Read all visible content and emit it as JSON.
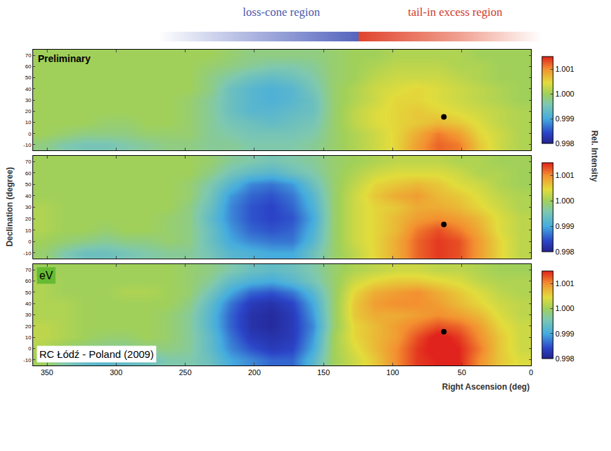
{
  "header": {
    "left": "loss-cone region",
    "right": "tail-in excess region"
  },
  "chart_data": [
    {
      "type": "heatmap",
      "annotation": "Preliminary",
      "tick_labels": "y",
      "grid": false,
      "xlim": [
        360,
        0
      ],
      "xticks": [
        350,
        300,
        250,
        200,
        150,
        100,
        50,
        0
      ],
      "ylim": [
        -15,
        75
      ],
      "yticks": [
        -10,
        0,
        10,
        20,
        30,
        40,
        50,
        60,
        70
      ],
      "zlim": [
        0.998,
        1.0015
      ],
      "zticks": [
        0.998,
        0.999,
        {
          "value": 1,
          "label": "1.000"
        },
        1.001
      ],
      "points": {
        "x": [
          63
        ],
        "y": [
          15
        ],
        "marker": "circle",
        "color": "#000000"
      },
      "x": [
        7.5,
        22.5,
        37.5,
        52.5,
        67.5,
        82.5,
        97.5,
        112.5,
        127.5,
        142.5,
        157.5,
        172.5,
        187.5,
        202.5,
        217.5,
        232.5,
        247.5,
        262.5,
        277.5,
        292.5,
        307.5,
        322.5,
        337.5,
        352.5
      ],
      "y": [
        -10,
        0,
        10,
        20,
        30,
        40,
        50,
        60,
        70
      ],
      "z": [
        [
          1.0001,
          1.0003,
          1.0006,
          1.0011,
          1.0012,
          1.0009,
          1.0005,
          1.0003,
          1.0001,
          0.9999,
          0.9997,
          0.9996,
          0.9996,
          0.9996,
          0.9997,
          0.9997,
          0.9998,
          0.9998,
          0.9997,
          0.9996,
          0.9995,
          0.9995,
          0.9996,
          0.9998
        ],
        [
          1.0001,
          1.0003,
          1.0005,
          1.0009,
          1.0011,
          1.0008,
          1.0005,
          1.0003,
          1.0001,
          0.9999,
          0.9996,
          0.9995,
          0.9995,
          0.9995,
          0.9996,
          0.9997,
          0.9999,
          0.9999,
          0.9999,
          0.9998,
          0.9998,
          0.9998,
          0.9999,
          1
        ],
        [
          1.0001,
          1.0002,
          1.0004,
          1.0006,
          1.0007,
          1.0006,
          1.0005,
          1.0004,
          1.0002,
          0.9999,
          0.9995,
          0.9994,
          0.9993,
          0.9994,
          0.9995,
          0.9997,
          0.9999,
          1,
          1,
          0.9999,
          0.9999,
          1,
          1,
          1
        ],
        [
          1.0001,
          1.0002,
          1.0003,
          1.0004,
          1.0005,
          1.0006,
          1.0005,
          1.0004,
          1.0002,
          0.9999,
          0.9994,
          0.9993,
          0.9992,
          0.9992,
          0.9994,
          0.9997,
          0.9999,
          1,
          1,
          1,
          1,
          1,
          1,
          1
        ],
        [
          1,
          1.0001,
          1.0002,
          1.0003,
          1.0004,
          1.0005,
          1.0005,
          1.0003,
          1.0001,
          0.9999,
          0.9994,
          0.9992,
          0.9991,
          0.9992,
          0.9994,
          0.9997,
          0.9999,
          1,
          1,
          1,
          1,
          1,
          1,
          1
        ],
        [
          1,
          1.0001,
          1.0002,
          1.0003,
          1.0004,
          1.0005,
          1.0004,
          1.0003,
          1.0001,
          0.9999,
          0.9995,
          0.9992,
          0.9991,
          0.9992,
          0.9994,
          0.9998,
          1,
          1,
          1,
          1,
          1,
          1,
          1,
          1
        ],
        [
          1,
          1,
          1.0001,
          1.0002,
          1.0003,
          1.0003,
          1.0003,
          1.0002,
          1,
          0.9999,
          0.9996,
          0.9994,
          0.9993,
          0.9994,
          0.9996,
          0.9998,
          1,
          1,
          1,
          1,
          1,
          1,
          1,
          1
        ],
        [
          1,
          1,
          1.0001,
          1.0001,
          1.0002,
          1.0002,
          1.0002,
          1.0001,
          1,
          0.9999,
          0.9997,
          0.9996,
          0.9996,
          0.9997,
          0.9998,
          0.9999,
          1,
          1,
          1,
          1,
          1,
          1,
          1,
          1
        ],
        [
          1,
          1,
          1,
          1.0001,
          1.0001,
          1.0001,
          1.0001,
          1,
          1,
          0.9999,
          0.9998,
          0.9998,
          0.9998,
          0.9998,
          0.9999,
          1,
          1,
          1,
          1,
          1,
          1,
          1,
          1,
          1
        ]
      ]
    },
    {
      "type": "heatmap",
      "ylabel": "Declination (degree)",
      "zlabel": "Rel. Intensity",
      "tick_labels": "y",
      "grid": false,
      "xlim": [
        360,
        0
      ],
      "xticks": [
        350,
        300,
        250,
        200,
        150,
        100,
        50,
        0
      ],
      "ylim": [
        -15,
        75
      ],
      "yticks": [
        -10,
        0,
        10,
        20,
        30,
        40,
        50,
        60,
        70
      ],
      "zlim": [
        0.998,
        1.0015
      ],
      "zticks": [
        0.998,
        0.999,
        {
          "value": 1,
          "label": "1.000"
        },
        1.001
      ],
      "points": {
        "x": [
          63
        ],
        "y": [
          15
        ],
        "marker": "circle",
        "color": "#000000"
      },
      "x": [
        7.5,
        22.5,
        37.5,
        52.5,
        67.5,
        82.5,
        97.5,
        112.5,
        127.5,
        142.5,
        157.5,
        172.5,
        187.5,
        202.5,
        217.5,
        232.5,
        247.5,
        262.5,
        277.5,
        292.5,
        307.5,
        322.5,
        337.5,
        352.5
      ],
      "y": [
        -10,
        0,
        10,
        20,
        30,
        40,
        50,
        60,
        70
      ],
      "z": [
        [
          1.0002,
          1.0005,
          1.0009,
          1.0013,
          1.0014,
          1.0012,
          1.0008,
          1.0005,
          1.0002,
          0.9999,
          0.9994,
          0.999,
          0.999,
          0.9991,
          0.9992,
          0.9995,
          0.9997,
          0.9997,
          0.9996,
          0.9995,
          0.9994,
          0.9994,
          0.9996,
          0.9999
        ],
        [
          1.0002,
          1.0005,
          1.0009,
          1.0013,
          1.0014,
          1.0012,
          1.0008,
          1.0005,
          1.0003,
          0.9999,
          0.9992,
          0.9987,
          0.9987,
          0.9988,
          0.999,
          0.9994,
          0.9998,
          0.9999,
          0.9998,
          0.9998,
          0.9997,
          0.9998,
          0.9999,
          1
        ],
        [
          1.0002,
          1.0004,
          1.0008,
          1.0011,
          1.0013,
          1.0011,
          1.0007,
          1.0005,
          1.0003,
          0.9999,
          0.9991,
          0.9986,
          0.9985,
          0.9986,
          0.9989,
          0.9994,
          0.9998,
          0.9999,
          1,
          1,
          0.9999,
          1,
          1,
          1.0001
        ],
        [
          1.0002,
          1.0004,
          1.0007,
          1.0009,
          1.001,
          1.0009,
          1.0007,
          1.0005,
          1.0003,
          0.9999,
          0.999,
          0.9985,
          0.9984,
          0.9985,
          0.9988,
          0.9993,
          0.9998,
          0.9999,
          1,
          1,
          1,
          1,
          1,
          1.0001
        ],
        [
          1.0001,
          1.0003,
          1.0005,
          1.0007,
          1.0008,
          1.0008,
          1.0006,
          1.0005,
          1.0003,
          0.9999,
          0.9991,
          0.9986,
          0.9984,
          0.9985,
          0.9988,
          0.9994,
          0.9998,
          1,
          1,
          1,
          1,
          1,
          1,
          1.0001
        ],
        [
          1.0001,
          1.0002,
          1.0004,
          1.0006,
          1.0007,
          1.0009,
          1.0008,
          1.0006,
          1.0003,
          0.9999,
          0.9992,
          0.9987,
          0.9985,
          0.9986,
          0.9989,
          0.9995,
          0.9999,
          1,
          1,
          1,
          1,
          1,
          1,
          1
        ],
        [
          1,
          1.0001,
          1.0003,
          1.0004,
          1.0006,
          1.0007,
          1.0006,
          1.0005,
          1.0002,
          0.9999,
          0.9994,
          0.9989,
          0.9987,
          0.9988,
          0.9992,
          0.9996,
          0.9999,
          1,
          1,
          1,
          1,
          1,
          1,
          1
        ],
        [
          1,
          1.0001,
          1.0001,
          1.0003,
          1.0004,
          1.0004,
          1.0004,
          1.0003,
          1.0001,
          0.9999,
          0.9996,
          0.9994,
          0.9992,
          0.9993,
          0.9995,
          0.9998,
          1,
          1,
          1,
          1,
          1,
          1,
          1,
          1
        ],
        [
          1,
          1,
          1.0001,
          1.0001,
          1.0002,
          1.0002,
          1.0002,
          1.0001,
          1,
          0.9999,
          0.9997,
          0.9996,
          0.9995,
          0.9996,
          0.9997,
          0.9999,
          1,
          1,
          1,
          1,
          1,
          1,
          1,
          1
        ]
      ]
    },
    {
      "type": "heatmap",
      "xlabel": "Right Ascension (deg)",
      "annotations": [
        "eV",
        "RC Łódź - Poland (2009)"
      ],
      "grid": false,
      "xlim": [
        360,
        0
      ],
      "xticks": [
        350,
        300,
        250,
        200,
        150,
        100,
        50,
        0
      ],
      "ylim": [
        -15,
        75
      ],
      "yticks": [
        -10,
        0,
        10,
        20,
        30,
        40,
        50,
        60,
        70
      ],
      "zlim": [
        0.998,
        1.0015
      ],
      "zticks": [
        0.998,
        0.999,
        {
          "value": 1,
          "label": "1.000"
        },
        1.001
      ],
      "points": {
        "x": [
          63
        ],
        "y": [
          15
        ],
        "marker": "circle",
        "color": "#000000"
      },
      "x": [
        7.5,
        22.5,
        37.5,
        52.5,
        67.5,
        82.5,
        97.5,
        112.5,
        127.5,
        142.5,
        157.5,
        172.5,
        187.5,
        202.5,
        217.5,
        232.5,
        247.5,
        262.5,
        277.5,
        292.5,
        307.5,
        322.5,
        337.5,
        352.5
      ],
      "y": [
        -10,
        0,
        10,
        20,
        30,
        40,
        50,
        60,
        70
      ],
      "z": [
        [
          1.0004,
          1.0006,
          1.001,
          1.0015,
          1.0015,
          1.0014,
          1.001,
          1.0006,
          1.0003,
          1,
          0.9992,
          0.9986,
          0.9986,
          0.9988,
          0.999,
          0.9994,
          0.9996,
          0.9996,
          0.9994,
          0.9993,
          0.9992,
          0.9993,
          0.9996,
          1
        ],
        [
          1.0003,
          1.0006,
          1.0011,
          1.0015,
          1.0016,
          1.0014,
          1.001,
          1.0007,
          1.0004,
          1,
          0.999,
          0.9984,
          0.9983,
          0.9985,
          0.9988,
          0.9993,
          0.9997,
          0.9998,
          0.9998,
          0.9997,
          0.9997,
          0.9998,
          0.9999,
          1.0001
        ],
        [
          1.0003,
          1.0006,
          1.001,
          1.0014,
          1.0016,
          1.0013,
          1.0009,
          1.0007,
          1.0005,
          1,
          0.9989,
          0.9983,
          0.9982,
          0.9983,
          0.9987,
          0.9993,
          0.9997,
          0.9999,
          1,
          0.9999,
          0.9999,
          1,
          1.0001,
          1.0002
        ],
        [
          1.0003,
          1.0005,
          1.0009,
          1.0012,
          1.0013,
          1.0011,
          1.0009,
          1.0007,
          1.0005,
          0.9999,
          0.9988,
          0.9983,
          0.9981,
          0.9982,
          0.9986,
          0.9992,
          0.9997,
          0.9999,
          1,
          1,
          1,
          1,
          1.0001,
          1.0002
        ],
        [
          1.0002,
          1.0004,
          1.0007,
          1.0009,
          1.001,
          1.0009,
          1.0008,
          1.0008,
          1.0006,
          0.9999,
          0.9989,
          0.9983,
          0.9981,
          0.9982,
          0.9986,
          0.9992,
          0.9997,
          0.9999,
          1,
          1,
          1,
          1,
          1.0001,
          1.0001
        ],
        [
          1.0002,
          1.0003,
          1.0005,
          1.0007,
          1.0009,
          1.001,
          1.001,
          1.0009,
          1.0006,
          0.9999,
          0.999,
          0.9984,
          0.9982,
          0.9983,
          0.9987,
          0.9993,
          0.9998,
          1,
          1,
          1,
          1,
          1,
          1.0001,
          1.0001
        ],
        [
          1.0001,
          1.0002,
          1.0004,
          1.0006,
          1.0008,
          1.001,
          1.0009,
          1.0008,
          1.0005,
          0.9999,
          0.9992,
          0.9987,
          0.9985,
          0.9986,
          0.999,
          0.9995,
          0.9999,
          1,
          1.0001,
          1.0001,
          1,
          1,
          1,
          1.0001
        ],
        [
          1.0001,
          1.0001,
          1.0002,
          1.0004,
          1.0005,
          1.0006,
          1.0006,
          1.0005,
          1.0003,
          0.9999,
          0.9995,
          0.9992,
          0.999,
          0.9991,
          0.9993,
          0.9997,
          0.9999,
          1,
          1,
          1,
          1,
          1,
          1,
          1.0001
        ],
        [
          1,
          1,
          1.0001,
          1.0002,
          1.0002,
          1.0003,
          1.0003,
          1.0002,
          1.0001,
          0.9999,
          0.9996,
          0.9994,
          0.9993,
          0.9994,
          0.9996,
          0.9998,
          0.9999,
          1,
          1,
          1,
          1,
          1,
          1,
          1
        ]
      ]
    }
  ]
}
